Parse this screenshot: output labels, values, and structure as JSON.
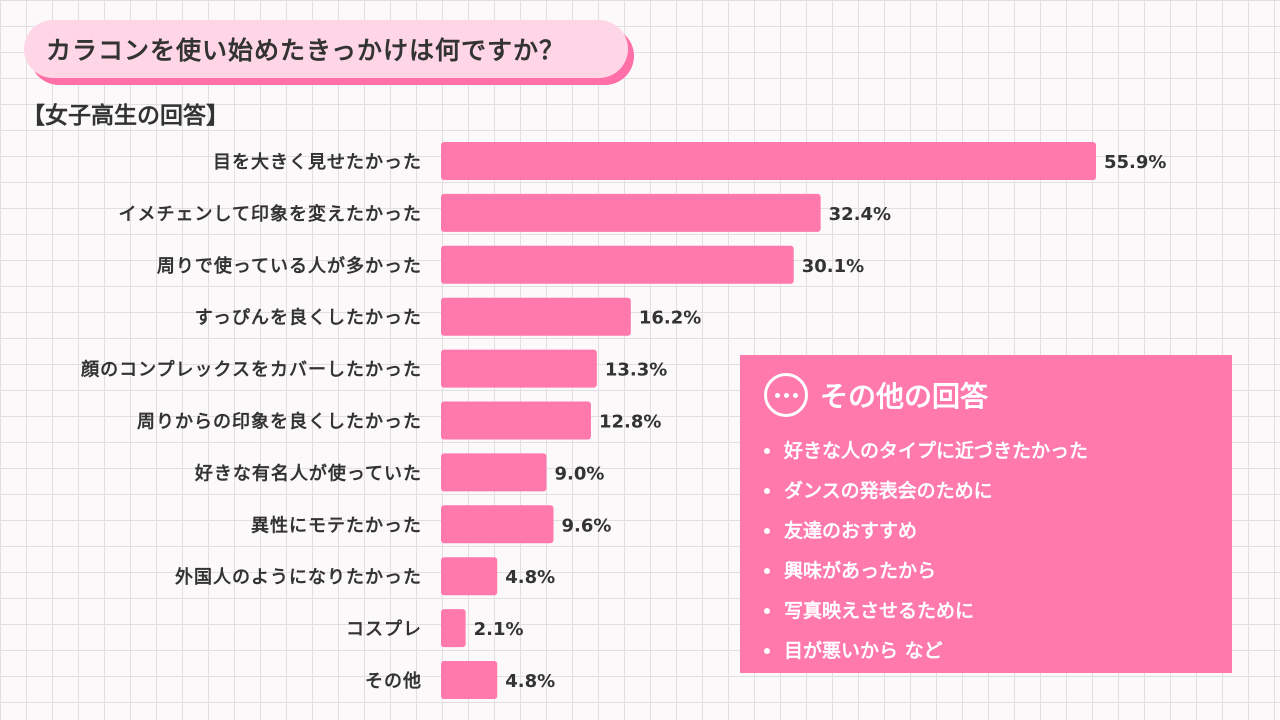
{
  "header": {
    "question": "カラコンを使い始めたきっかけは何ですか？",
    "subtitle": "【女子高生の回答】"
  },
  "chart_data": {
    "type": "bar",
    "orientation": "horizontal",
    "title": "カラコンを使い始めたきっかけは何ですか？",
    "subtitle": "【女子高生の回答】",
    "categories": [
      "目を大きく見せたかった",
      "イメチェンして印象を変えたかった",
      "周りで使っている人が多かった",
      "すっぴんを良くしたかった",
      "顔のコンプレックスをカバーしたかった",
      "周りからの印象を良くしたかった",
      "好きな有名人が使っていた",
      "異性にモテたかった",
      "外国人のようになりたかった",
      "コスプレ",
      "その他"
    ],
    "values": [
      55.9,
      32.4,
      30.1,
      16.2,
      13.3,
      12.8,
      9.0,
      9.6,
      4.8,
      2.1,
      4.8
    ],
    "value_labels": [
      "55.9%",
      "32.4%",
      "30.1%",
      "16.2%",
      "13.3%",
      "12.8%",
      "9.0%",
      "9.6%",
      "4.8%",
      "2.1%",
      "4.8%"
    ],
    "unit": "%",
    "xlim": [
      0,
      60
    ],
    "bar_color": "#ff79ad",
    "grid": false
  },
  "other_answers": {
    "title": "その他の回答",
    "icon": "ellipsis-icon",
    "items": [
      "好きな人のタイプに近づきたかった",
      "ダンスの発表会のために",
      "友達のおすすめ",
      "興味があったから",
      "写真映えさせるために",
      "目が悪いから など"
    ]
  },
  "colors": {
    "accent": "#ff79ad",
    "title_bg": "#ffd6e6",
    "title_shadow": "#ff6fa8",
    "text": "#333333"
  }
}
